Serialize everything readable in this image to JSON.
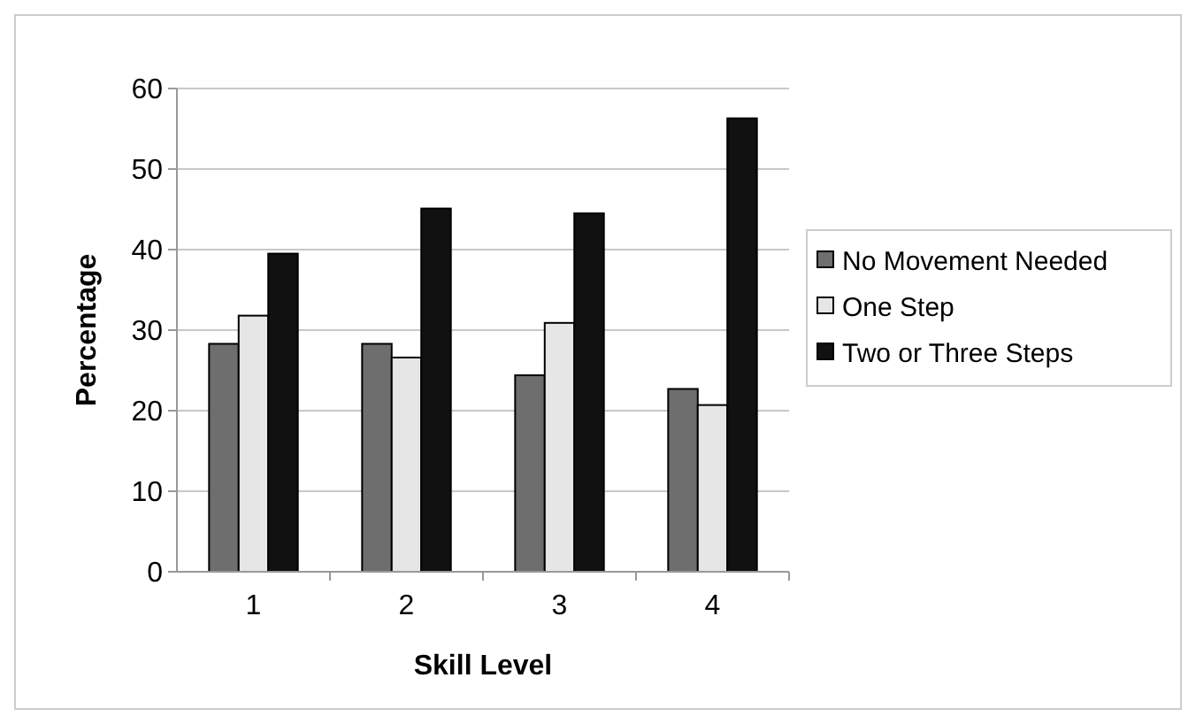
{
  "chart_data": {
    "type": "bar",
    "xlabel": "Skill Level",
    "ylabel": "Percentage",
    "categories": [
      "1",
      "2",
      "3",
      "4"
    ],
    "series": [
      {
        "name": "No Movement Needed",
        "color": "#6e6e6e",
        "values": [
          28.3,
          28.3,
          24.4,
          22.7
        ]
      },
      {
        "name": "One Step",
        "color": "#e6e6e6",
        "values": [
          31.8,
          26.6,
          30.9,
          20.7
        ]
      },
      {
        "name": "Two or Three Steps",
        "color": "#111111",
        "values": [
          39.5,
          45.1,
          44.5,
          56.3
        ]
      }
    ],
    "ylim": [
      0,
      60
    ],
    "yticks": [
      0,
      10,
      20,
      30,
      40,
      50,
      60
    ],
    "grid": "y",
    "legend": "right"
  }
}
